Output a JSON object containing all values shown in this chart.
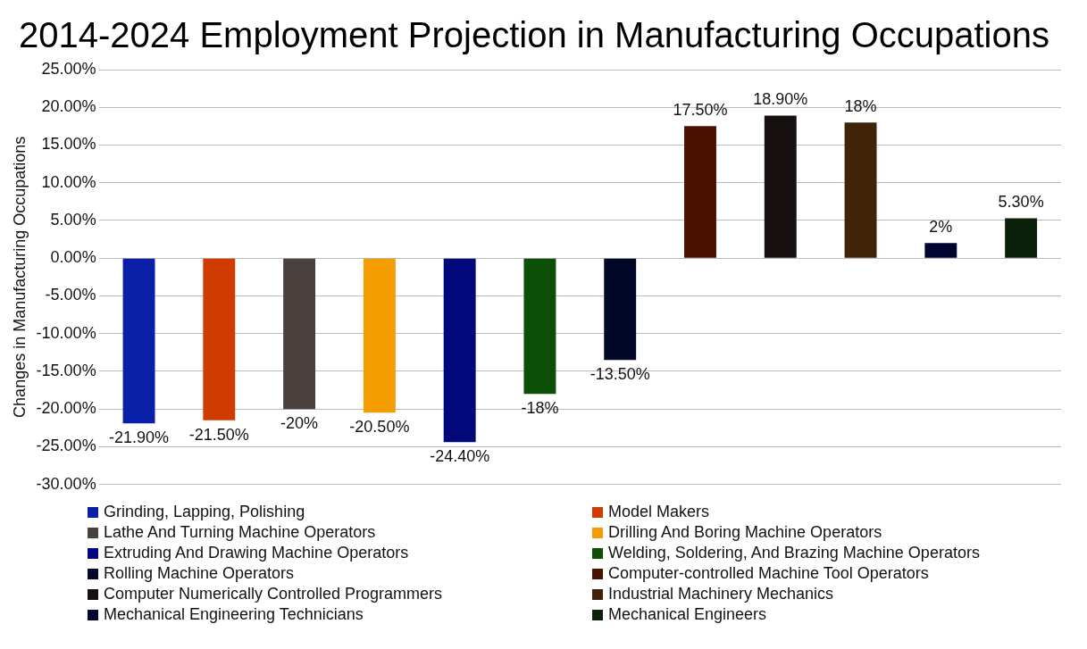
{
  "chart_data": {
    "type": "bar",
    "title": "2014-2024 Employment Projection in Manufacturing Occupations",
    "ylabel": "Changes in Manufacturing Occupations",
    "categories": [
      null,
      null,
      null,
      null,
      null,
      null,
      null,
      null,
      null,
      null,
      null,
      null
    ],
    "series": [
      {
        "name": "Grinding, Lapping, Polishing",
        "color": "#0a1fa8",
        "values": [
          -21.9,
          null,
          null,
          null,
          null,
          null,
          null,
          null,
          null,
          null,
          null,
          null
        ],
        "value_labels": [
          "-21.90%",
          null,
          null,
          null,
          null,
          null,
          null,
          null,
          null,
          null,
          null,
          null
        ]
      },
      {
        "name": "Model Makers",
        "color": "#d03c00",
        "values": [
          null,
          -21.5,
          null,
          null,
          null,
          null,
          null,
          null,
          null,
          null,
          null,
          null
        ],
        "value_labels": [
          null,
          "-21.50%",
          null,
          null,
          null,
          null,
          null,
          null,
          null,
          null,
          null,
          null
        ]
      },
      {
        "name": "Lathe And Turning Machine Operators",
        "color": "#4a403e",
        "values": [
          null,
          null,
          -20,
          null,
          null,
          null,
          null,
          null,
          null,
          null,
          null,
          null
        ],
        "value_labels": [
          null,
          null,
          "-20%",
          null,
          null,
          null,
          null,
          null,
          null,
          null,
          null,
          null
        ]
      },
      {
        "name": "Drilling And Boring Machine Operators",
        "color": "#f59c00",
        "values": [
          null,
          null,
          null,
          -20.5,
          null,
          null,
          null,
          null,
          null,
          null,
          null,
          null
        ],
        "value_labels": [
          null,
          null,
          null,
          "-20.50%",
          null,
          null,
          null,
          null,
          null,
          null,
          null,
          null
        ]
      },
      {
        "name": "Extruding And Drawing Machine Operators",
        "color": "#00087a",
        "values": [
          null,
          null,
          null,
          null,
          -24.4,
          null,
          null,
          null,
          null,
          null,
          null,
          null
        ],
        "value_labels": [
          null,
          null,
          null,
          null,
          "-24.40%",
          null,
          null,
          null,
          null,
          null,
          null,
          null
        ]
      },
      {
        "name": "Welding, Soldering, And Brazing Machine Operators",
        "color": "#0c5008",
        "values": [
          null,
          null,
          null,
          null,
          null,
          -18,
          null,
          null,
          null,
          null,
          null,
          null
        ],
        "value_labels": [
          null,
          null,
          null,
          null,
          null,
          "-18%",
          null,
          null,
          null,
          null,
          null,
          null
        ]
      },
      {
        "name": "Rolling Machine Operators",
        "color": "#020828",
        "values": [
          null,
          null,
          null,
          null,
          null,
          null,
          -13.5,
          null,
          null,
          null,
          null,
          null
        ],
        "value_labels": [
          null,
          null,
          null,
          null,
          null,
          null,
          "-13.50%",
          null,
          null,
          null,
          null,
          null
        ]
      },
      {
        "name": "Computer-controlled Machine Tool Operators",
        "color": "#4a1000",
        "values": [
          null,
          null,
          null,
          null,
          null,
          null,
          null,
          17.5,
          null,
          null,
          null,
          null
        ],
        "value_labels": [
          null,
          null,
          null,
          null,
          null,
          null,
          null,
          "17.50%",
          null,
          null,
          null,
          null
        ]
      },
      {
        "name": "Computer Numerically Controlled Programmers",
        "color": "#171010",
        "values": [
          null,
          null,
          null,
          null,
          null,
          null,
          null,
          null,
          18.9,
          null,
          null,
          null
        ],
        "value_labels": [
          null,
          null,
          null,
          null,
          null,
          null,
          null,
          null,
          "18.90%",
          null,
          null,
          null
        ]
      },
      {
        "name": "Industrial Machinery Mechanics",
        "color": "#402408",
        "values": [
          null,
          null,
          null,
          null,
          null,
          null,
          null,
          null,
          null,
          18,
          null,
          null
        ],
        "value_labels": [
          null,
          null,
          null,
          null,
          null,
          null,
          null,
          null,
          null,
          "18%",
          null,
          null
        ]
      },
      {
        "name": "Mechanical Engineering Technicians",
        "color": "#020530",
        "values": [
          null,
          null,
          null,
          null,
          null,
          null,
          null,
          null,
          null,
          null,
          2,
          null
        ],
        "value_labels": [
          null,
          null,
          null,
          null,
          null,
          null,
          null,
          null,
          null,
          null,
          "2%",
          null
        ]
      },
      {
        "name": "Mechanical Engineers",
        "color": "#0a200a",
        "values": [
          null,
          null,
          null,
          null,
          null,
          null,
          null,
          null,
          null,
          null,
          null,
          5.3
        ],
        "value_labels": [
          null,
          null,
          null,
          null,
          null,
          null,
          null,
          null,
          null,
          null,
          null,
          "5.30%"
        ]
      }
    ],
    "ylim": [
      -30,
      25
    ],
    "yticks": [
      {
        "value": -30,
        "label": "-30.00%"
      },
      {
        "value": -25,
        "label": "-25.00%"
      },
      {
        "value": -20,
        "label": "-20.00%"
      },
      {
        "value": -15,
        "label": "-15.00%"
      },
      {
        "value": -10,
        "label": "-10.00%"
      },
      {
        "value": -5,
        "label": "-5.00%"
      },
      {
        "value": 0,
        "label": "0.00%"
      },
      {
        "value": 5,
        "label": "5.00%"
      },
      {
        "value": 10,
        "label": "10.00%"
      },
      {
        "value": 15,
        "label": "15.00%"
      },
      {
        "value": 20,
        "label": "20.00%"
      },
      {
        "value": 25,
        "label": "25.00%"
      }
    ],
    "grid": "y",
    "legend": "bottom"
  }
}
